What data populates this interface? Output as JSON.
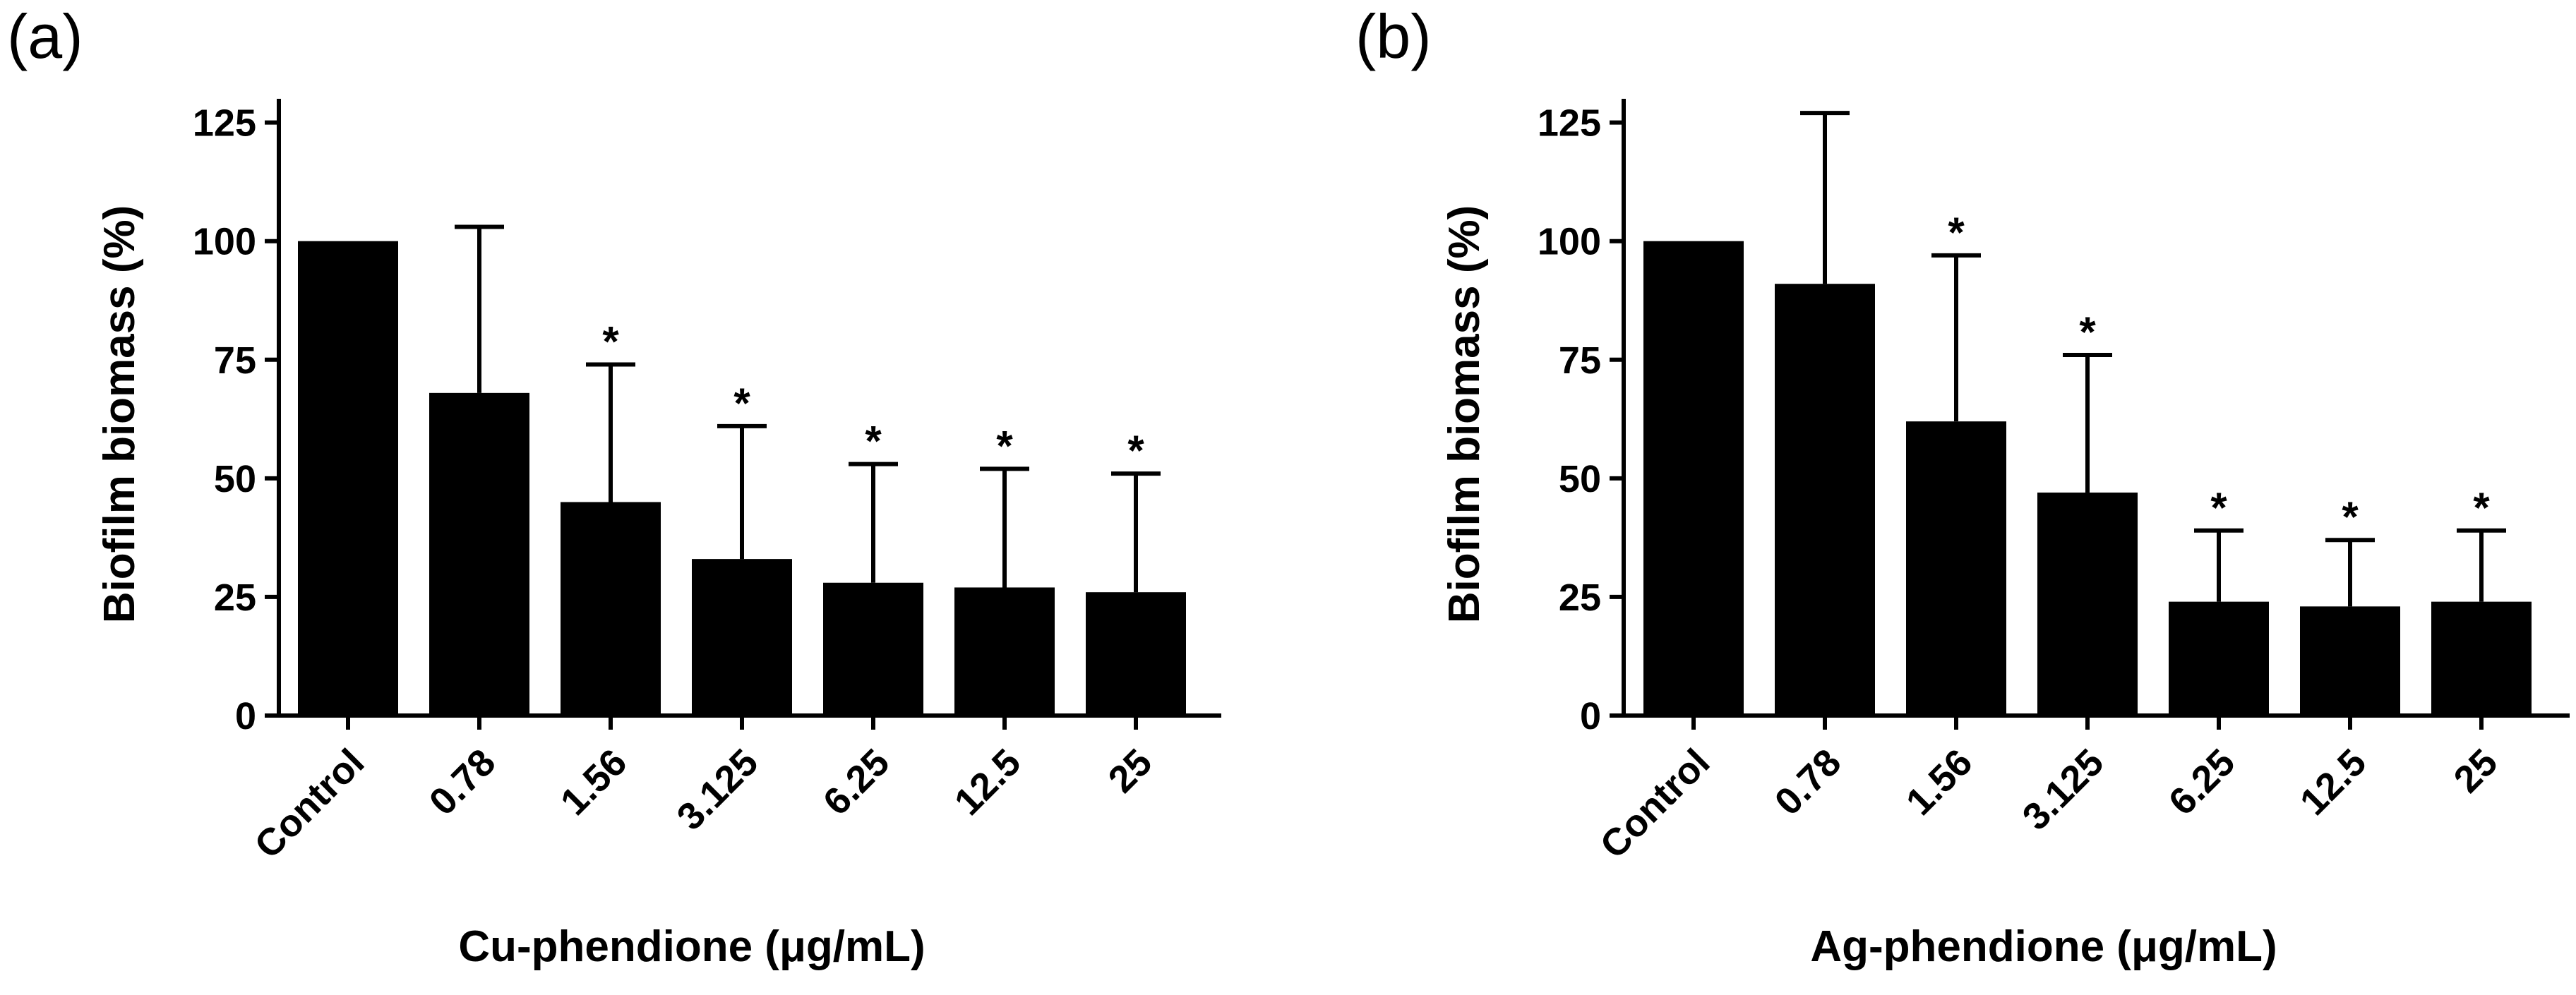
{
  "chart_data": [
    {
      "type": "bar",
      "panel_label": "(a)",
      "categories": [
        "Control",
        "0.78",
        "1.56",
        "3.125",
        "6.25",
        "12.5",
        "25"
      ],
      "values": [
        100,
        68,
        45,
        33,
        28,
        27,
        26
      ],
      "error_upper": [
        0,
        35,
        29,
        28,
        25,
        25,
        25
      ],
      "significant": [
        false,
        false,
        true,
        true,
        true,
        true,
        true
      ],
      "significance_marker": "*",
      "xlabel": "Cu-phendione (μg/mL)",
      "ylabel": "Biofilm biomass (%)",
      "ylim": [
        0,
        130
      ],
      "yticks": [
        "0",
        "25",
        "50",
        "75",
        "100",
        "125"
      ],
      "bar_color": "#000000"
    },
    {
      "type": "bar",
      "panel_label": "(b)",
      "categories": [
        "Control",
        "0.78",
        "1.56",
        "3.125",
        "6.25",
        "12.5",
        "25"
      ],
      "values": [
        100,
        91,
        62,
        47,
        24,
        23,
        24
      ],
      "error_upper": [
        0,
        36,
        35,
        29,
        15,
        14,
        15
      ],
      "significant": [
        false,
        false,
        true,
        true,
        true,
        true,
        true
      ],
      "significance_marker": "*",
      "xlabel": "Ag-phendione (μg/mL)",
      "ylabel": "Biofilm biomass (%)",
      "ylim": [
        0,
        130
      ],
      "yticks": [
        "0",
        "25",
        "50",
        "75",
        "100",
        "125"
      ],
      "bar_color": "#000000"
    }
  ]
}
